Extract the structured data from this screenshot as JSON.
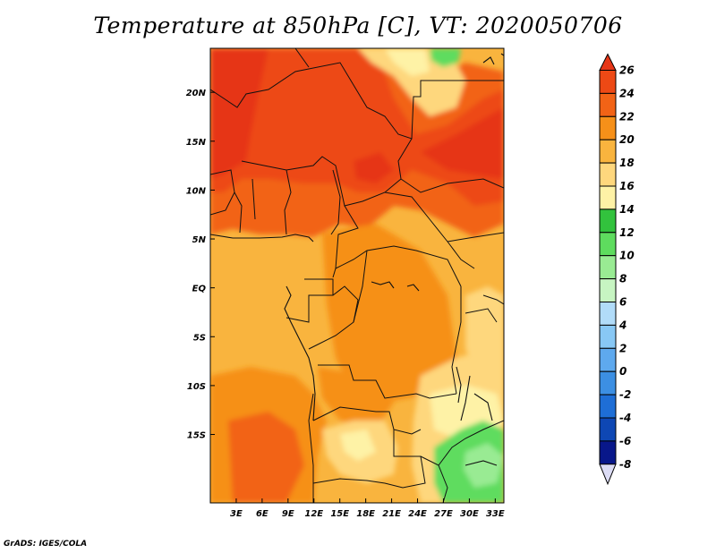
{
  "title": "Temperature at 850hPa [C], VT: 2020050706",
  "credit": "GrADS: IGES/COLA",
  "map": {
    "lon_range": [
      0,
      34
    ],
    "lat_range": [
      -22,
      24.5
    ],
    "lon_ticks": [
      {
        "value": 3,
        "label": "3E"
      },
      {
        "value": 6,
        "label": "6E"
      },
      {
        "value": 9,
        "label": "9E"
      },
      {
        "value": 12,
        "label": "12E"
      },
      {
        "value": 15,
        "label": "15E"
      },
      {
        "value": 18,
        "label": "18E"
      },
      {
        "value": 21,
        "label": "21E"
      },
      {
        "value": 24,
        "label": "24E"
      },
      {
        "value": 27,
        "label": "27E"
      },
      {
        "value": 30,
        "label": "30E"
      },
      {
        "value": 33,
        "label": "33E"
      }
    ],
    "lat_ticks": [
      {
        "value": 20,
        "label": "20N"
      },
      {
        "value": 15,
        "label": "15N"
      },
      {
        "value": 10,
        "label": "10N"
      },
      {
        "value": 5,
        "label": "5N"
      },
      {
        "value": 0,
        "label": "EQ"
      },
      {
        "value": -5,
        "label": "5S"
      },
      {
        "value": -10,
        "label": "10S"
      },
      {
        "value": -15,
        "label": "15S"
      }
    ],
    "base_color": "#f9b43e"
  },
  "colorbar": {
    "levels": [
      "26",
      "24",
      "22",
      "20",
      "18",
      "16",
      "14",
      "12",
      "10",
      "8",
      "6",
      "4",
      "2",
      "0",
      "-2",
      "-4",
      "-6",
      "-8"
    ],
    "colors_top_to_bottom": [
      "#e63617",
      "#ed4915",
      "#f26316",
      "#f69019",
      "#f9b43e",
      "#fed77d",
      "#fef2a6",
      "#32c23d",
      "#5edc5e",
      "#99eb93",
      "#c7f5c2",
      "#b1dcf9",
      "#88c8f5",
      "#5ea9ee",
      "#3c8fe3",
      "#1e6ed6",
      "#0e47b4",
      "#08178a",
      "#dcdcf5"
    ]
  }
}
